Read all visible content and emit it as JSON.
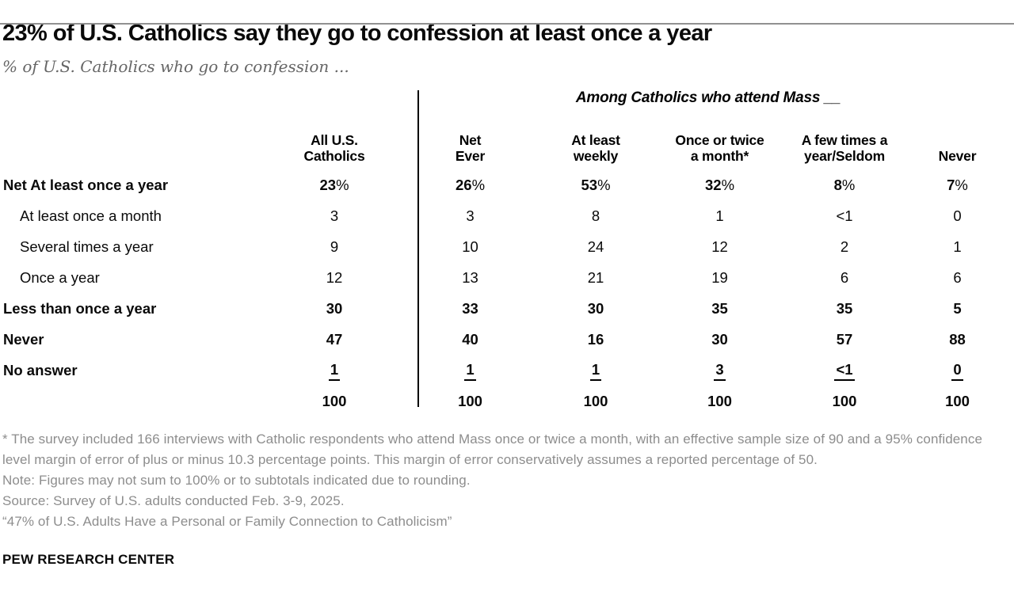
{
  "header": {
    "title": "23% of U.S. Catholics say they go to confession at least once a year",
    "subtitle": "% of U.S. Catholics who go to confession ..."
  },
  "chart_data": {
    "type": "table",
    "group_header": "Among Catholics who attend Mass __",
    "pct_suffix": "%",
    "columns": [
      {
        "line1": "All U.S.",
        "line2": "Catholics"
      },
      {
        "line1": "Net",
        "line2": "Ever"
      },
      {
        "line1": "At least",
        "line2": "weekly"
      },
      {
        "line1": "Once or twice",
        "line2": "a month*"
      },
      {
        "line1": "A few times a",
        "line2": "year/Seldom"
      },
      {
        "line1": "",
        "line2": "Never"
      }
    ],
    "rows": [
      {
        "label": "Net At least once a year",
        "style": "bold-pct",
        "values": [
          "23",
          "26",
          "53",
          "32",
          "8",
          "7"
        ]
      },
      {
        "label": "At least once a month",
        "style": "sub",
        "values": [
          "3",
          "3",
          "8",
          "1",
          "<1",
          "0"
        ]
      },
      {
        "label": "Several times a year",
        "style": "sub",
        "values": [
          "9",
          "10",
          "24",
          "12",
          "2",
          "1"
        ]
      },
      {
        "label": "Once a year",
        "style": "sub",
        "values": [
          "12",
          "13",
          "21",
          "19",
          "6",
          "6"
        ]
      },
      {
        "label": "Less than once a year",
        "style": "bold",
        "values": [
          "30",
          "33",
          "30",
          "35",
          "35",
          "5"
        ]
      },
      {
        "label": "Never",
        "style": "bold",
        "values": [
          "47",
          "40",
          "16",
          "30",
          "57",
          "88"
        ]
      },
      {
        "label": "No answer",
        "style": "bold-underline",
        "values": [
          "1",
          "1",
          "1",
          "3",
          "<1",
          "0"
        ]
      },
      {
        "label": "",
        "style": "bold-total",
        "values": [
          "100",
          "100",
          "100",
          "100",
          "100",
          "100"
        ]
      }
    ]
  },
  "footnotes": [
    "* The survey included 166 interviews with Catholic respondents who attend Mass once or twice a month, with an effective sample size of 90 and a 95% confidence level margin of error of plus or minus 10.3 percentage points. This margin of error conservatively assumes a reported percentage of 50.",
    "Note: Figures may not sum to 100% or to subtotals indicated due to rounding.",
    "Source: Survey of U.S. adults conducted Feb. 3-9, 2025.",
    "“47% of U.S. Adults Have a Personal or Family Connection to Catholicism”"
  ],
  "footer": {
    "brand": "PEW RESEARCH CENTER"
  }
}
